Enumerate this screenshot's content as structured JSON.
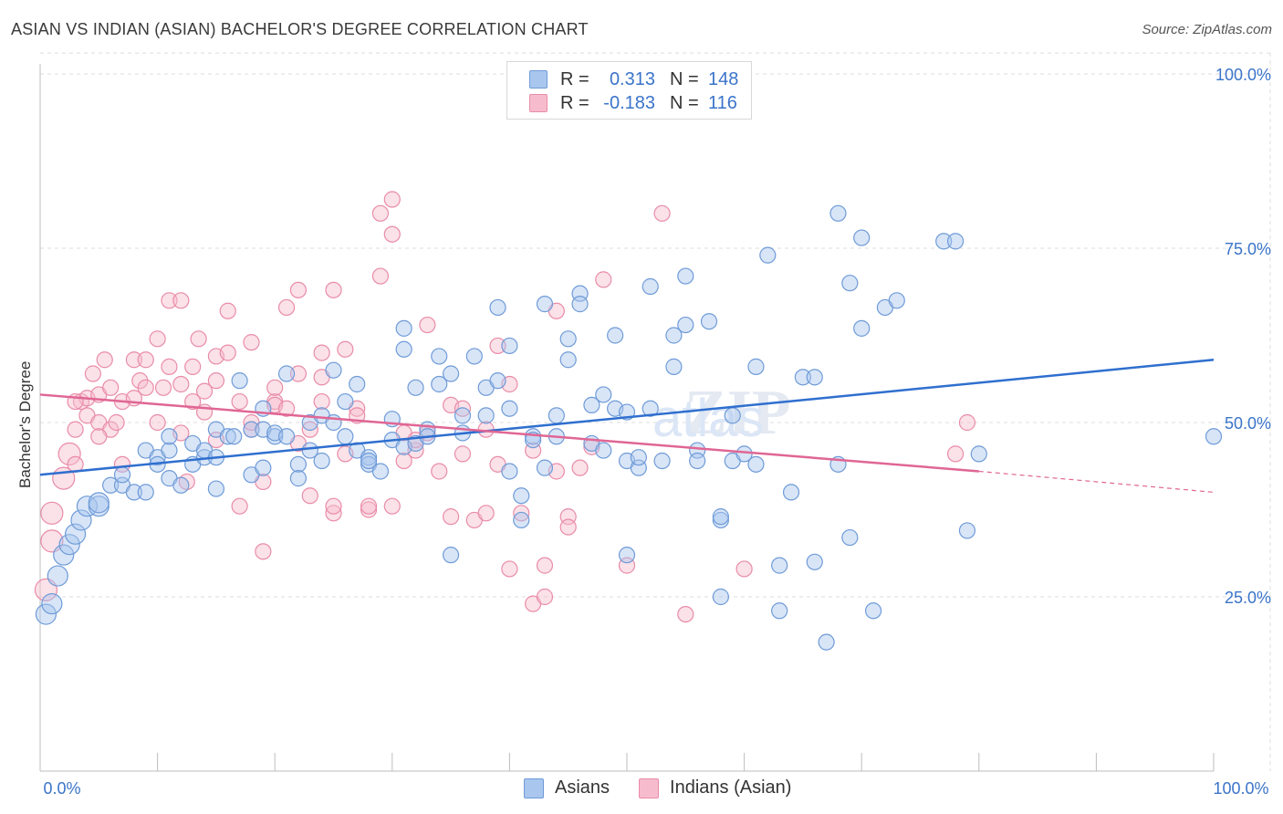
{
  "header": {
    "title": "ASIAN VS INDIAN (ASIAN) BACHELOR'S DEGREE CORRELATION CHART",
    "source": "Source: ZipAtlas.com"
  },
  "legend_box": {
    "rows": [
      {
        "r_label": "R =",
        "r_value": "0.313",
        "n_label": "N =",
        "n_value": "148"
      },
      {
        "r_label": "R =",
        "r_value": "-0.183",
        "n_label": "N =",
        "n_value": "116"
      }
    ]
  },
  "bottom_legend": {
    "items": [
      "Asians",
      "Indians (Asian)"
    ]
  },
  "colors": {
    "asians_fill": "#a9c6ee",
    "asians_stroke": "#6f9bd8",
    "asians_line": "#2f6fcf",
    "indians_fill": "#f6bccd",
    "indians_stroke": "#e98ca9",
    "indians_line": "#e06694",
    "tick_label": "#3b74c9",
    "grid": "#dcdcdc"
  },
  "chart_data": {
    "type": "scatter",
    "xlabel": "",
    "ylabel": "Bachelor's Degree",
    "xlim": [
      0,
      100
    ],
    "ylim": [
      0,
      105
    ],
    "x_tick_labels": [
      "0.0%",
      "100.0%"
    ],
    "y_tick_labels": [
      "25.0%",
      "50.0%",
      "75.0%",
      "100.0%"
    ],
    "y_ticks": [
      25,
      50,
      75,
      100
    ],
    "x_minor_ticks": [
      10,
      20,
      30,
      40,
      50,
      60,
      70,
      80,
      90,
      100
    ],
    "grid": true,
    "legend_position": "top-center",
    "watermark": "ZIPatlas",
    "series": [
      {
        "name": "Asians",
        "r": 0.313,
        "n": 148,
        "trend": {
          "x0": 0,
          "y0": 42.5,
          "x1": 100,
          "y1": 59
        },
        "points": [
          [
            0.5,
            22.5
          ],
          [
            1,
            24
          ],
          [
            1.5,
            28
          ],
          [
            2,
            31
          ],
          [
            2.5,
            32.5
          ],
          [
            3,
            34
          ],
          [
            3.5,
            36
          ],
          [
            4,
            38
          ],
          [
            5,
            38
          ],
          [
            5,
            38.5
          ],
          [
            6,
            41
          ],
          [
            7,
            41
          ],
          [
            7,
            42.5
          ],
          [
            8,
            40
          ],
          [
            9,
            40
          ],
          [
            9,
            46
          ],
          [
            10,
            45
          ],
          [
            10,
            44
          ],
          [
            11,
            46
          ],
          [
            11,
            48
          ],
          [
            11,
            42
          ],
          [
            12,
            41
          ],
          [
            13,
            44
          ],
          [
            13,
            47
          ],
          [
            14,
            45
          ],
          [
            14,
            46
          ],
          [
            15,
            40.5
          ],
          [
            15,
            45
          ],
          [
            15,
            49
          ],
          [
            16,
            48
          ],
          [
            16.5,
            48
          ],
          [
            17,
            56
          ],
          [
            18,
            49
          ],
          [
            18,
            42.5
          ],
          [
            19,
            43.5
          ],
          [
            19,
            49
          ],
          [
            19,
            52
          ],
          [
            20,
            48
          ],
          [
            20,
            48.5
          ],
          [
            21,
            48
          ],
          [
            21,
            57
          ],
          [
            22,
            44
          ],
          [
            22,
            42
          ],
          [
            23,
            50
          ],
          [
            23,
            46
          ],
          [
            24,
            51
          ],
          [
            24,
            44.5
          ],
          [
            25,
            50
          ],
          [
            25,
            57.5
          ],
          [
            26,
            53
          ],
          [
            26,
            48
          ],
          [
            27,
            55.5
          ],
          [
            27,
            46
          ],
          [
            28,
            45
          ],
          [
            28,
            44
          ],
          [
            28,
            44.5
          ],
          [
            29,
            43
          ],
          [
            30,
            50.5
          ],
          [
            30,
            47.5
          ],
          [
            31,
            46.5
          ],
          [
            31,
            63.5
          ],
          [
            31,
            60.5
          ],
          [
            32,
            55
          ],
          [
            32,
            47
          ],
          [
            33,
            49
          ],
          [
            33,
            48
          ],
          [
            34,
            59.5
          ],
          [
            34,
            55.5
          ],
          [
            35,
            57
          ],
          [
            35,
            31
          ],
          [
            36,
            51
          ],
          [
            36,
            48.5
          ],
          [
            37,
            59.5
          ],
          [
            38,
            51
          ],
          [
            38,
            55
          ],
          [
            39,
            66.5
          ],
          [
            39,
            56
          ],
          [
            40,
            61
          ],
          [
            40,
            52
          ],
          [
            40,
            43
          ],
          [
            41,
            39.5
          ],
          [
            41,
            36
          ],
          [
            42,
            48
          ],
          [
            42,
            47.5
          ],
          [
            43,
            43.5
          ],
          [
            43,
            67
          ],
          [
            44,
            51
          ],
          [
            44,
            48
          ],
          [
            45,
            62
          ],
          [
            45,
            59
          ],
          [
            46,
            68.5
          ],
          [
            46,
            67
          ],
          [
            47,
            47
          ],
          [
            47,
            52.5
          ],
          [
            48,
            54
          ],
          [
            48,
            46
          ],
          [
            49,
            62.5
          ],
          [
            49,
            52
          ],
          [
            50,
            31
          ],
          [
            50,
            51.5
          ],
          [
            50,
            44.5
          ],
          [
            51,
            43.5
          ],
          [
            51,
            45
          ],
          [
            52,
            52
          ],
          [
            52,
            69.5
          ],
          [
            53,
            44.5
          ],
          [
            54,
            58
          ],
          [
            54,
            62.5
          ],
          [
            55,
            64
          ],
          [
            55,
            71
          ],
          [
            56,
            46
          ],
          [
            56,
            44.5
          ],
          [
            57,
            64.5
          ],
          [
            58,
            36
          ],
          [
            58,
            36.5
          ],
          [
            58,
            25
          ],
          [
            59,
            44.5
          ],
          [
            59,
            51
          ],
          [
            60,
            45.5
          ],
          [
            61,
            44
          ],
          [
            61,
            58
          ],
          [
            62,
            74
          ],
          [
            63,
            23
          ],
          [
            63,
            29.5
          ],
          [
            64,
            40
          ],
          [
            65,
            56.5
          ],
          [
            66,
            56.5
          ],
          [
            66,
            30
          ],
          [
            67,
            18.5
          ],
          [
            68,
            44
          ],
          [
            68,
            80
          ],
          [
            69,
            33.5
          ],
          [
            69,
            70
          ],
          [
            70,
            63.5
          ],
          [
            70,
            76.5
          ],
          [
            71,
            23
          ],
          [
            72,
            66.5
          ],
          [
            73,
            67.5
          ],
          [
            77,
            76
          ],
          [
            78,
            76
          ],
          [
            79,
            34.5
          ],
          [
            80,
            45.5
          ],
          [
            100,
            48
          ]
        ]
      },
      {
        "name": "Indians (Asian)",
        "r": -0.183,
        "n": 116,
        "trend": {
          "x0": 0,
          "y0": 54,
          "x1": 80,
          "y1": 43,
          "dash_x1": 100,
          "dash_y1": 40
        },
        "points": [
          [
            0.5,
            26
          ],
          [
            1,
            33
          ],
          [
            1,
            37
          ],
          [
            2,
            42
          ],
          [
            2.5,
            45.5
          ],
          [
            3,
            44
          ],
          [
            3,
            49
          ],
          [
            3.5,
            53
          ],
          [
            4,
            53.5
          ],
          [
            4,
            51
          ],
          [
            4.5,
            57
          ],
          [
            5,
            50
          ],
          [
            5,
            54
          ],
          [
            5.5,
            59
          ],
          [
            6,
            55
          ],
          [
            6,
            49
          ],
          [
            6.5,
            50
          ],
          [
            7,
            44
          ],
          [
            7,
            53
          ],
          [
            8,
            59
          ],
          [
            8,
            53.5
          ],
          [
            8.5,
            56
          ],
          [
            9,
            55
          ],
          [
            9,
            59
          ],
          [
            10,
            50
          ],
          [
            10,
            62
          ],
          [
            10.5,
            55
          ],
          [
            11,
            58
          ],
          [
            11,
            67.5
          ],
          [
            12,
            67.5
          ],
          [
            12,
            55.5
          ],
          [
            12,
            48.5
          ],
          [
            12.5,
            41.5
          ],
          [
            13,
            53
          ],
          [
            13,
            58
          ],
          [
            13.5,
            62
          ],
          [
            14,
            51.5
          ],
          [
            14,
            54.5
          ],
          [
            15,
            56
          ],
          [
            15,
            59.5
          ],
          [
            15,
            47.5
          ],
          [
            16,
            66
          ],
          [
            16,
            60
          ],
          [
            17,
            53
          ],
          [
            17,
            38
          ],
          [
            18,
            61.5
          ],
          [
            18,
            49
          ],
          [
            18,
            50
          ],
          [
            19,
            31.5
          ],
          [
            19,
            41.5
          ],
          [
            20,
            53
          ],
          [
            20,
            55
          ],
          [
            20,
            52.5
          ],
          [
            21,
            52
          ],
          [
            21,
            66.5
          ],
          [
            22,
            69
          ],
          [
            22,
            57
          ],
          [
            22,
            47
          ],
          [
            23,
            49
          ],
          [
            23,
            39.5
          ],
          [
            24,
            60
          ],
          [
            24,
            56.5
          ],
          [
            24,
            53
          ],
          [
            25,
            37
          ],
          [
            25,
            38
          ],
          [
            25,
            69
          ],
          [
            26,
            45.5
          ],
          [
            26,
            60.5
          ],
          [
            27,
            52
          ],
          [
            27,
            51
          ],
          [
            28,
            37.5
          ],
          [
            28,
            38
          ],
          [
            29,
            71
          ],
          [
            29,
            80
          ],
          [
            30,
            82
          ],
          [
            30,
            77
          ],
          [
            30,
            38
          ],
          [
            31,
            44.5
          ],
          [
            31,
            48.5
          ],
          [
            32,
            46
          ],
          [
            32,
            47.5
          ],
          [
            33,
            64
          ],
          [
            33,
            48.5
          ],
          [
            34,
            43
          ],
          [
            35,
            36.5
          ],
          [
            35,
            52.5
          ],
          [
            36,
            52
          ],
          [
            36,
            45.5
          ],
          [
            37,
            36
          ],
          [
            38,
            37
          ],
          [
            38,
            49
          ],
          [
            39,
            44
          ],
          [
            39,
            61
          ],
          [
            40,
            55.5
          ],
          [
            40,
            29
          ],
          [
            41,
            37
          ],
          [
            42,
            24
          ],
          [
            42,
            46
          ],
          [
            43,
            25
          ],
          [
            43,
            29.5
          ],
          [
            44,
            66
          ],
          [
            44,
            43
          ],
          [
            45,
            36.5
          ],
          [
            45,
            35
          ],
          [
            46,
            43.5
          ],
          [
            47,
            46.5
          ],
          [
            48,
            70.5
          ],
          [
            50,
            29.5
          ],
          [
            53,
            80
          ],
          [
            55,
            22.5
          ],
          [
            60,
            29
          ],
          [
            78,
            45.5
          ],
          [
            79,
            50
          ],
          [
            3,
            53
          ],
          [
            5,
            48
          ]
        ]
      }
    ]
  }
}
